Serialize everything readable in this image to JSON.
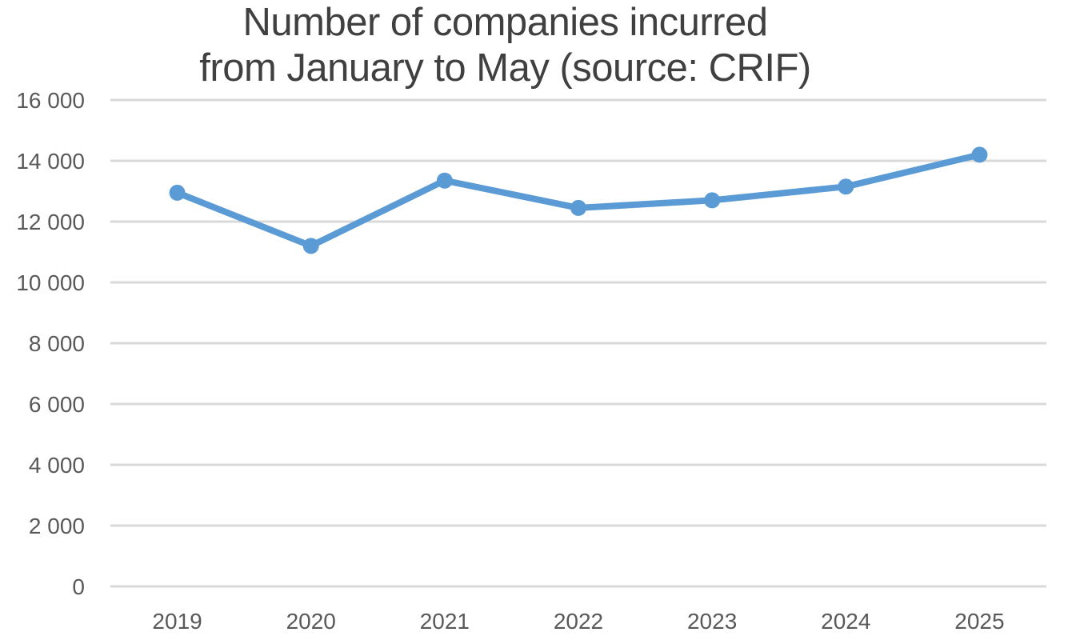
{
  "chart_data": {
    "type": "line",
    "title_lines": [
      "Number of companies incurred",
      "from January to May (source: CRIF)"
    ],
    "xlabel": "",
    "ylabel": "",
    "categories": [
      "2019",
      "2020",
      "2021",
      "2022",
      "2023",
      "2024",
      "2025"
    ],
    "series": [
      {
        "values": [
          12950,
          11200,
          13350,
          12450,
          12700,
          13150,
          14200
        ],
        "color": "#5B9BD5"
      }
    ],
    "ylim": [
      0,
      16000
    ],
    "y_ticks": [
      0,
      2000,
      4000,
      6000,
      8000,
      10000,
      12000,
      14000,
      16000
    ],
    "y_tick_labels": [
      "0",
      "2 000",
      "4 000",
      "6 000",
      "8 000",
      "10 000",
      "12 000",
      "14 000",
      "16 000"
    ],
    "grid": true,
    "gridline_color": "#D9D9D9",
    "legend": "none"
  }
}
